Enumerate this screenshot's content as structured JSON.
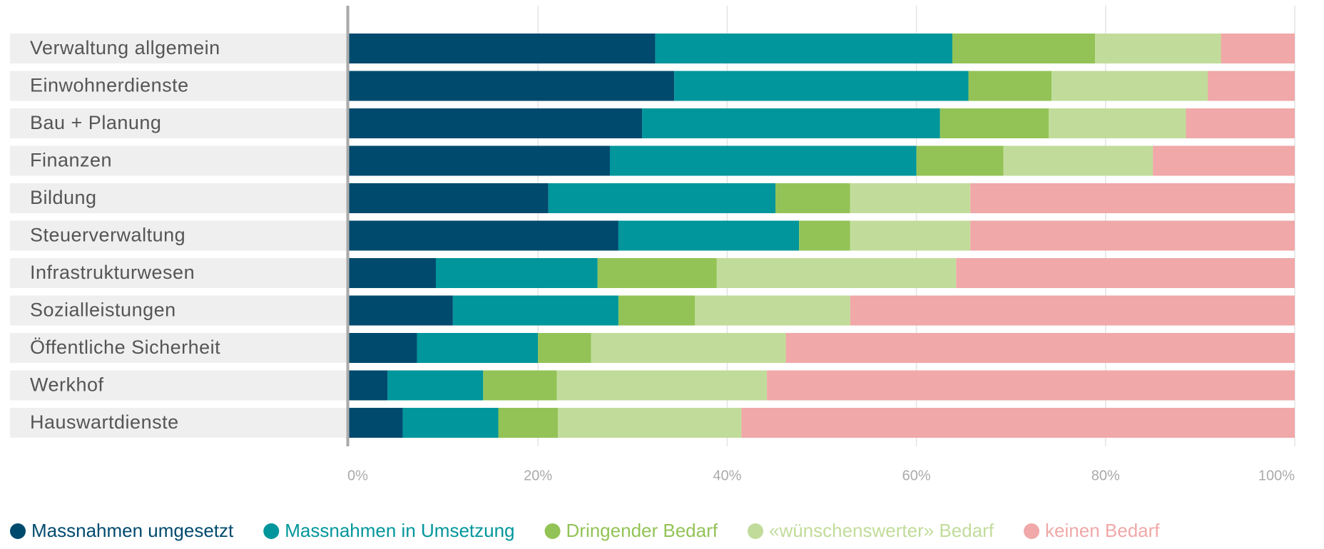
{
  "chart_data": {
    "type": "stacked_bar_horizontal",
    "categories": [
      "Verwaltung allgemein",
      "Einwohnerdienste",
      "Bau + Planung",
      "Finanzen",
      "Bildung",
      "Steuerverwaltung",
      "Infrastrukturwesen",
      "Sozialleistungen",
      "Öffentliche Sicherheit",
      "Werkhof",
      "Hauswartdienste"
    ],
    "series": [
      {
        "name": "Massnahmen umgesetzt",
        "color": "#004a6e",
        "values": [
          32.4,
          34.4,
          31.0,
          27.6,
          21.1,
          28.5,
          9.2,
          11.0,
          7.2,
          4.1,
          5.7
        ]
      },
      {
        "name": "Massnahmen in Umsetzung",
        "color": "#00969b",
        "values": [
          31.4,
          31.1,
          31.5,
          32.4,
          24.0,
          19.1,
          17.1,
          17.5,
          12.8,
          10.1,
          10.1
        ]
      },
      {
        "name": "Dringender Bedarf",
        "color": "#93c356",
        "values": [
          15.1,
          8.8,
          11.5,
          9.2,
          7.9,
          5.4,
          12.6,
          8.1,
          5.6,
          7.8,
          6.3
        ]
      },
      {
        "name": "«wünschenswerter» Bedarf",
        "color": "#c1dc9a",
        "values": [
          13.3,
          16.5,
          14.5,
          15.8,
          12.7,
          12.7,
          25.3,
          16.4,
          20.6,
          22.2,
          19.4
        ]
      },
      {
        "name": "keinen Bedarf",
        "color": "#f0a8a8",
        "values": [
          7.8,
          9.2,
          11.5,
          15.0,
          34.3,
          34.3,
          35.8,
          47.0,
          53.8,
          55.8,
          58.5
        ]
      }
    ],
    "xlim": [
      0,
      100
    ],
    "xticks": [
      {
        "value": 0,
        "label": "0%"
      },
      {
        "value": 20,
        "label": "20%"
      },
      {
        "value": 40,
        "label": "40%"
      },
      {
        "value": 60,
        "label": "60%"
      },
      {
        "value": 80,
        "label": "80%"
      },
      {
        "value": 100,
        "label": "100%"
      }
    ],
    "grid": true,
    "legend": "bottom"
  }
}
